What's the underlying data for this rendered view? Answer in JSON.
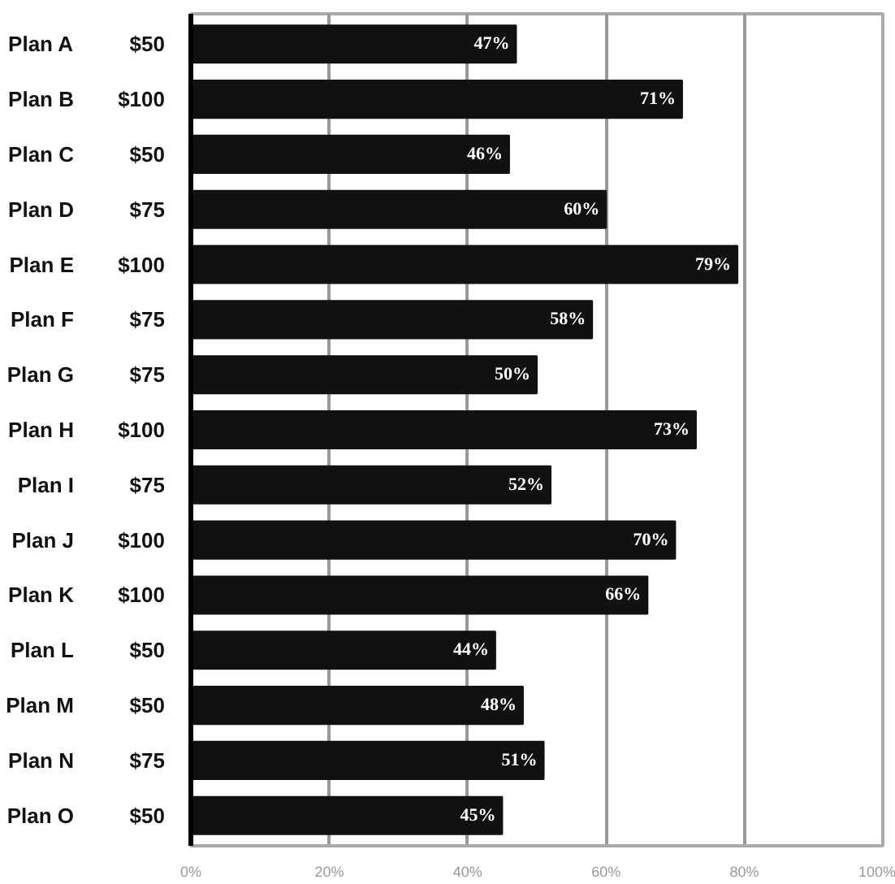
{
  "chart_data": {
    "type": "bar",
    "orientation": "horizontal",
    "categories": [
      "Plan A",
      "Plan B",
      "Plan C",
      "Plan D",
      "Plan E",
      "Plan F",
      "Plan G",
      "Plan H",
      "Plan I",
      "Plan J",
      "Plan K",
      "Plan L",
      "Plan M",
      "Plan N",
      "Plan O"
    ],
    "y2_categories": [
      "$50",
      "$100",
      "$50",
      "$75",
      "$100",
      "$75",
      "$75",
      "$100",
      "$75",
      "$100",
      "$100",
      "$50",
      "$50",
      "$75",
      "$50"
    ],
    "values": [
      47,
      71,
      46,
      60,
      79,
      58,
      50,
      73,
      52,
      70,
      66,
      44,
      48,
      51,
      45
    ],
    "value_labels": [
      "47%",
      "71%",
      "46%",
      "60%",
      "79%",
      "58%",
      "50%",
      "73%",
      "52%",
      "70%",
      "66%",
      "44%",
      "48%",
      "51%",
      "45%"
    ],
    "color": "#111111",
    "xlim": [
      0,
      100
    ],
    "xticks": [
      {
        "value": 0,
        "label": "0%"
      },
      {
        "value": 20,
        "label": "20%"
      },
      {
        "value": 40,
        "label": "40%"
      },
      {
        "value": 60,
        "label": "60%"
      },
      {
        "value": 80,
        "label": "80%"
      },
      {
        "value": 100,
        "label": "100%"
      }
    ],
    "grid": "x"
  }
}
